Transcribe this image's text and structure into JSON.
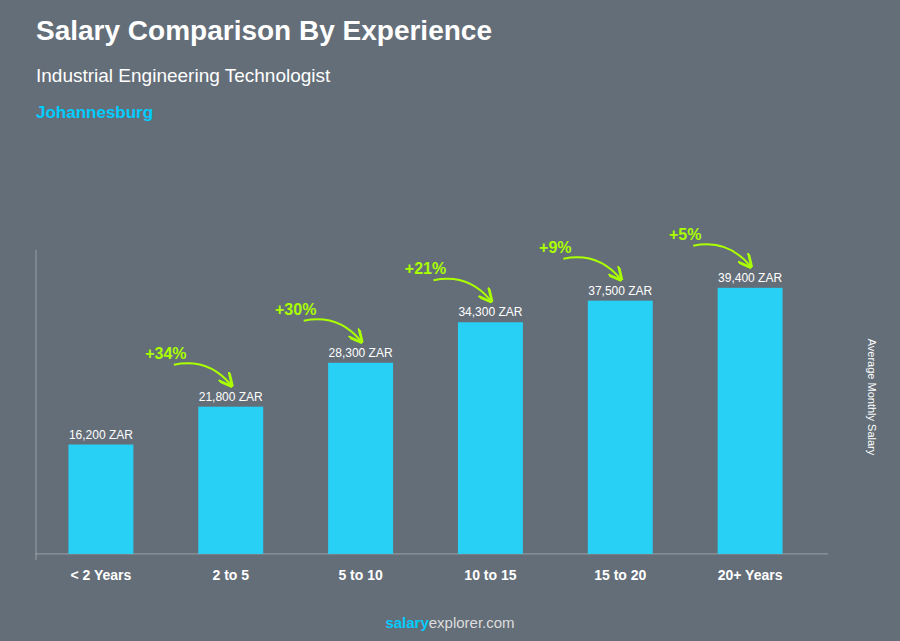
{
  "chart_data": {
    "type": "bar",
    "title": "Salary Comparison By Experience",
    "subtitle": "Industrial Engineering Technologist",
    "ylabel": "Average Monthly Salary",
    "annotations": [
      "Johannesburg",
      "salary",
      "explorer.com"
    ],
    "categories": [
      "< 2 Years",
      "2 to 5",
      "5 to 10",
      "10 to 15",
      "15 to 20",
      "20+ Years"
    ],
    "values": [
      16200,
      21800,
      28300,
      34300,
      37500,
      39400
    ],
    "value_labels": [
      "16,200 ZAR",
      "21,800 ZAR",
      "28,300 ZAR",
      "34,300 ZAR",
      "37,500 ZAR",
      "39,400 ZAR"
    ],
    "change_labels": [
      null,
      "+34%",
      "+30%",
      "+21%",
      "+9%",
      "+5%"
    ],
    "color": "#29d0f5",
    "ylim": [
      -900,
      45000
    ],
    "tick_labels": false,
    "data_labels": true
  }
}
